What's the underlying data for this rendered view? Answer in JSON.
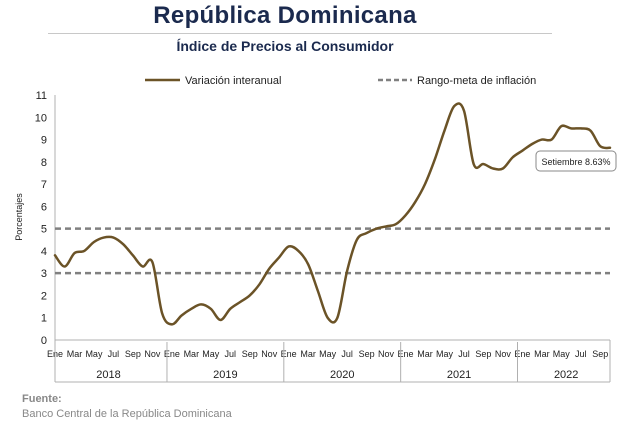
{
  "header": {
    "title": "República Dominicana",
    "subtitle": "Índice de Precios al Consumidor"
  },
  "source": {
    "label": "Fuente:",
    "text": "Banco Central de la República Dominicana"
  },
  "chart_data": {
    "type": "line",
    "ylabel": "Porcentajes",
    "ylim": [
      0,
      11
    ],
    "yticks": [
      0,
      1,
      2,
      3,
      4,
      5,
      6,
      7,
      8,
      9,
      10,
      11
    ],
    "grid": false,
    "legend_position": "top",
    "month_labels": [
      "Ene",
      "Mar",
      "May",
      "Jul",
      "Sep",
      "Nov"
    ],
    "last_month_labels": [
      "Ene",
      "Mar",
      "May",
      "Jul",
      "Sep"
    ],
    "years": [
      "2018",
      "2019",
      "2020",
      "2021",
      "2022"
    ],
    "series": [
      {
        "name": "Variación interanual",
        "color": "#6b5327",
        "values": [
          3.8,
          3.3,
          3.9,
          4.0,
          4.4,
          4.6,
          4.6,
          4.3,
          3.8,
          3.3,
          3.5,
          1.2,
          0.7,
          1.1,
          1.4,
          1.6,
          1.4,
          0.9,
          1.4,
          1.7,
          2.0,
          2.5,
          3.2,
          3.7,
          4.2,
          4.0,
          3.4,
          2.2,
          1.0,
          1.0,
          3.1,
          4.5,
          4.8,
          5.0,
          5.1,
          5.2,
          5.6,
          6.2,
          7.0,
          8.1,
          9.4,
          10.5,
          10.3,
          7.9,
          7.9,
          7.7,
          7.7,
          8.2,
          8.5,
          8.8,
          9.0,
          9.0,
          9.6,
          9.5,
          9.5,
          9.4,
          8.7,
          8.63
        ]
      }
    ],
    "reference_lines": {
      "name": "Rango-meta de inflación",
      "values": [
        5,
        3
      ],
      "color": "#808080"
    },
    "annotation": {
      "text": "Setiembre 8.63%",
      "value": 8.63
    }
  }
}
